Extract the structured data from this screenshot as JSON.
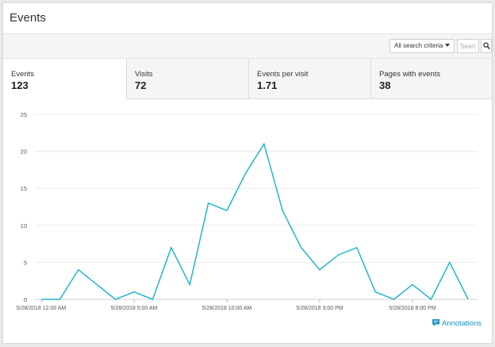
{
  "header": {
    "title": "Events"
  },
  "toolbar": {
    "criteria_label": "All search criteria",
    "search_placeholder": "Search",
    "search_icon": "magnifier-icon"
  },
  "tabs": [
    {
      "label": "Events",
      "value": "123"
    },
    {
      "label": "Visits",
      "value": "72"
    },
    {
      "label": "Events per visit",
      "value": "1.71"
    },
    {
      "label": "Pages with events",
      "value": "38"
    }
  ],
  "annotations": {
    "label": "Annotations",
    "icon": "comment-icon"
  },
  "colors": {
    "line": "#22b5cc",
    "link": "#1a8fc4",
    "grid": "#ececec"
  },
  "chart_data": {
    "type": "line",
    "title": "",
    "xlabel": "",
    "ylabel": "",
    "ylim": [
      0,
      25
    ],
    "yticks": [
      0,
      5,
      10,
      15,
      20,
      25
    ],
    "grid": true,
    "x_tick_labels": [
      {
        "index": 0,
        "label": "5/28/2018 12:00 AM"
      },
      {
        "index": 5,
        "label": "5/28/2018 5:00 AM"
      },
      {
        "index": 10,
        "label": "5/28/2018 10:00 AM"
      },
      {
        "index": 15,
        "label": "5/28/2018 3:00 PM"
      },
      {
        "index": 20,
        "label": "5/28/2018 8:00 PM"
      }
    ],
    "series": [
      {
        "values": [
          0,
          0,
          4,
          2,
          0,
          1,
          0,
          7,
          2,
          13,
          12,
          17,
          21,
          12,
          7,
          4,
          6,
          7,
          1,
          0,
          2,
          0,
          5,
          0
        ]
      }
    ]
  }
}
